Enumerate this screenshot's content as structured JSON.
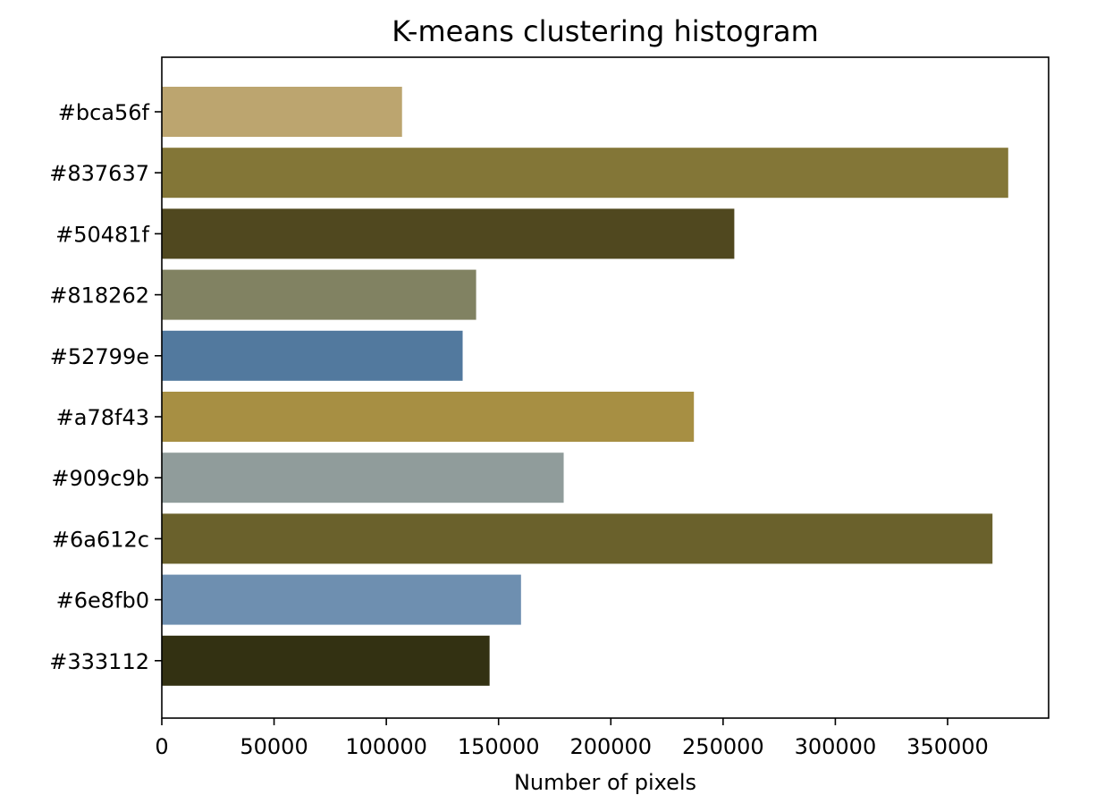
{
  "chart_data": {
    "type": "bar",
    "orientation": "horizontal",
    "title": "K-means clustering histogram",
    "xlabel": "Number of pixels",
    "ylabel": "",
    "xlim": [
      0,
      395000
    ],
    "xticks": [
      0,
      50000,
      100000,
      150000,
      200000,
      250000,
      300000,
      350000
    ],
    "grid": false,
    "categories": [
      "#bca56f",
      "#837637",
      "#50481f",
      "#818262",
      "#52799e",
      "#a78f43",
      "#909c9b",
      "#6a612c",
      "#6e8fb0",
      "#333112"
    ],
    "values": [
      107000,
      377000,
      255000,
      140000,
      134000,
      237000,
      179000,
      370000,
      160000,
      146000
    ],
    "bar_colors": [
      "#bca56f",
      "#837637",
      "#50481f",
      "#818262",
      "#52799e",
      "#a78f43",
      "#909c9b",
      "#6a612c",
      "#6e8fb0",
      "#333112"
    ]
  }
}
